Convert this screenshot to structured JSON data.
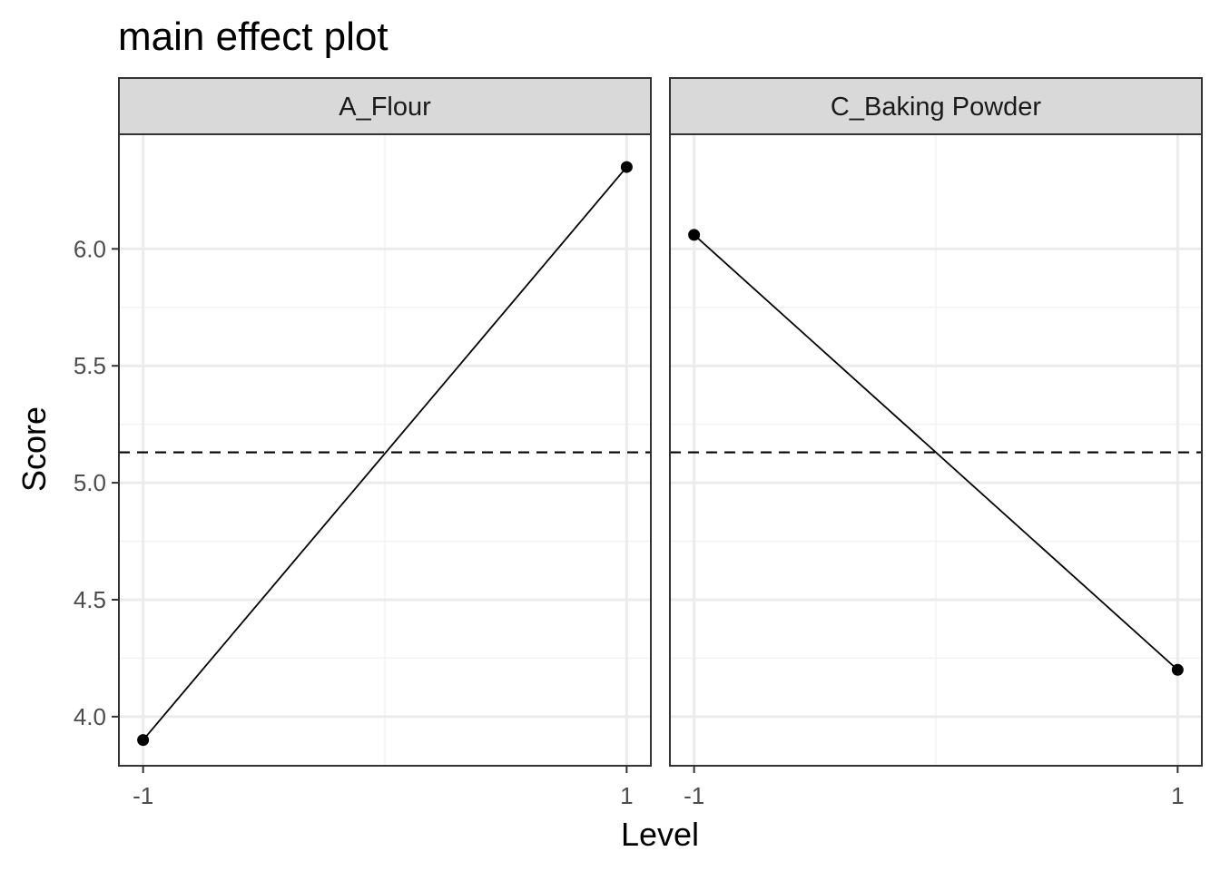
{
  "chart_data": {
    "type": "line",
    "title": "main effect plot",
    "xlabel": "Level",
    "ylabel": "Score",
    "x": [
      -1,
      1
    ],
    "xticks": [
      "-1",
      "1"
    ],
    "xlim": [
      -1.1,
      1.1
    ],
    "ylim": [
      3.79,
      6.49
    ],
    "yticks": [
      "4.0",
      "4.5",
      "5.0",
      "5.5",
      "6.0"
    ],
    "grand_mean": 5.13,
    "grid": true,
    "legend": "none",
    "line_color": "#000000",
    "reference_line_style": "dashed",
    "facets": [
      {
        "name": "A_Flour",
        "values": [
          3.9,
          6.35
        ]
      },
      {
        "name": "C_Baking Powder",
        "values": [
          6.06,
          4.2
        ]
      }
    ]
  }
}
